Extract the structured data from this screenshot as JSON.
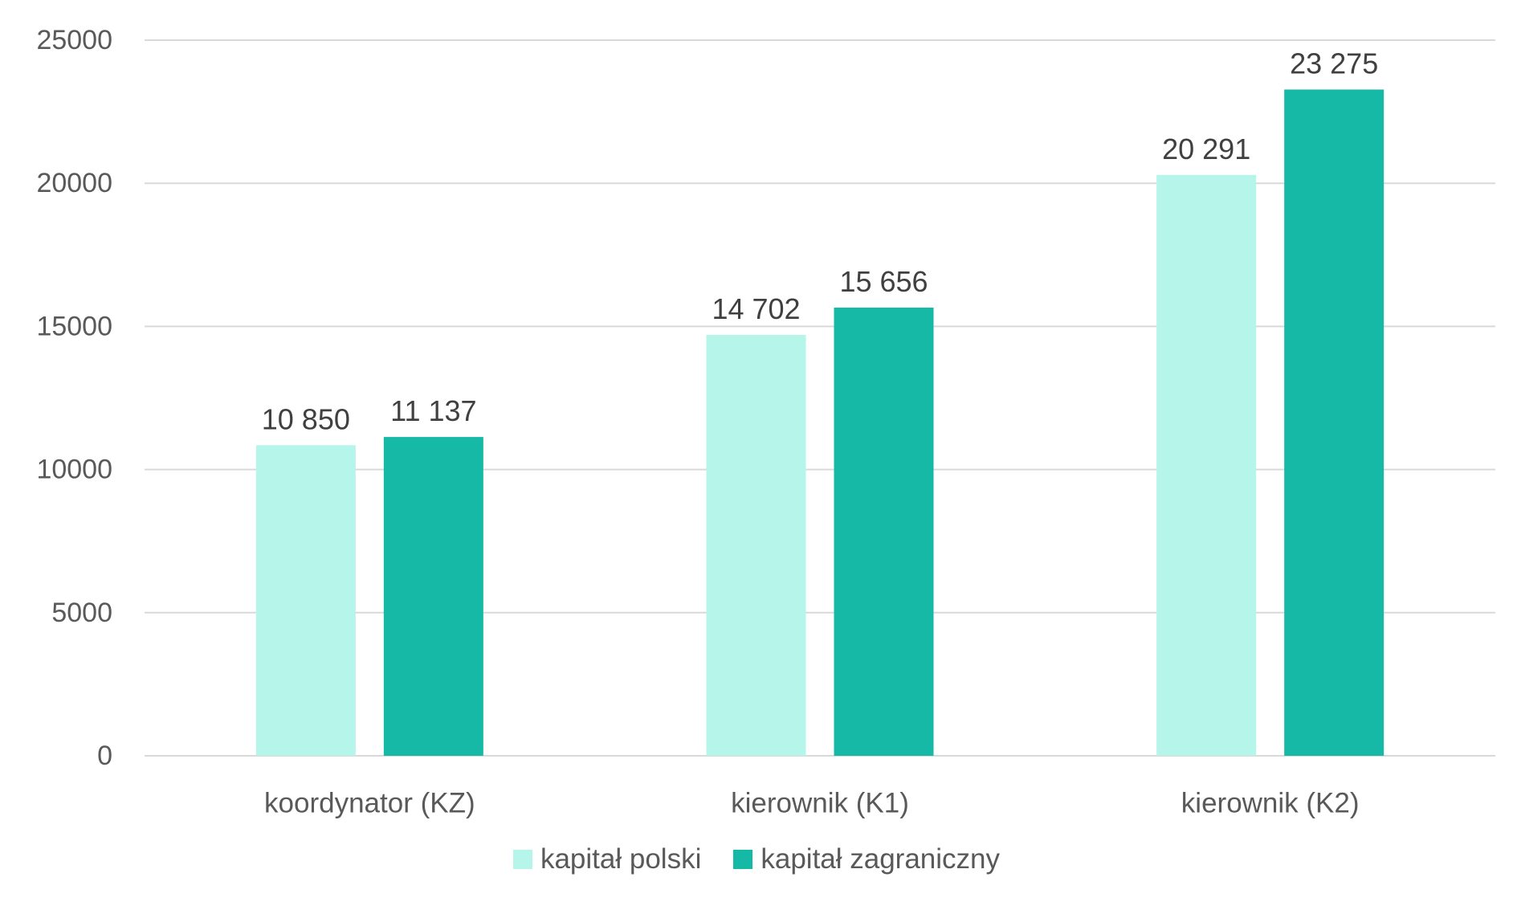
{
  "chart_data": {
    "type": "bar",
    "title": "",
    "xlabel": "",
    "ylabel": "",
    "categories": [
      "koordynator (KZ)",
      "kierownik (K1)",
      "kierownik (K2)"
    ],
    "series": [
      {
        "name": "kapitał polski",
        "color": "#b6f5e9",
        "values": [
          10850,
          14702,
          20291
        ],
        "labels": [
          "10 850",
          "14 702",
          "20 291"
        ]
      },
      {
        "name": "kapitał zagraniczny",
        "color": "#16b8a6",
        "values": [
          11137,
          15656,
          23275
        ],
        "labels": [
          "11 137",
          "15 656",
          "23 275"
        ]
      }
    ],
    "ylim": [
      0,
      25000
    ],
    "yticks": [
      0,
      5000,
      10000,
      15000,
      20000,
      25000
    ],
    "ytick_labels": [
      "0",
      "5000",
      "10000",
      "15000",
      "20000",
      "25000"
    ],
    "grid": true,
    "legend_position": "bottom"
  }
}
